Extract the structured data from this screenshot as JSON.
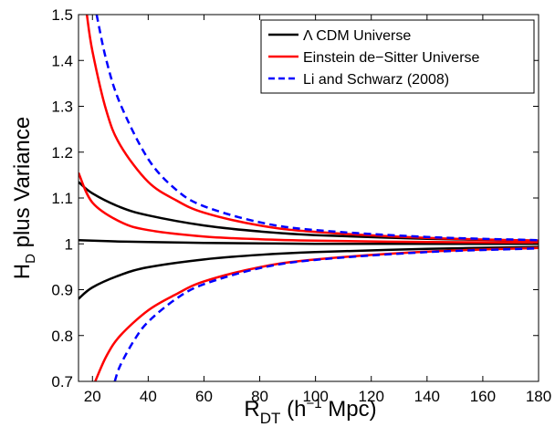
{
  "chart_data": {
    "type": "line",
    "xlabel": {
      "main": "R",
      "sub": "DT",
      "paren_open": " (h",
      "sup": "−1",
      "paren_close": " Mpc)"
    },
    "ylabel": {
      "main": "H",
      "sub": "D",
      "rest": " plus Variance"
    },
    "xlim": [
      15,
      180
    ],
    "ylim": [
      0.7,
      1.5
    ],
    "xticks": [
      "20",
      "40",
      "60",
      "80",
      "100",
      "120",
      "140",
      "160",
      "180"
    ],
    "yticks": [
      "0.7",
      "0.8",
      "0.9",
      "1",
      "1.1",
      "1.2",
      "1.3",
      "1.4",
      "1.5"
    ],
    "grid": false,
    "legend_position": "top-right",
    "legend": [
      {
        "label": "Λ CDM Universe",
        "color": "#000000",
        "style": "solid"
      },
      {
        "label": "Einstein de−Sitter Universe",
        "color": "#ff0000",
        "style": "solid"
      },
      {
        "label": "Li and Schwarz (2008)",
        "color": "#0000ff",
        "style": "dashed"
      }
    ],
    "series": [
      {
        "group": "Λ CDM Universe",
        "color": "#000000",
        "style": "solid",
        "x": [
          15,
          20,
          30,
          40,
          60,
          80,
          100,
          140,
          180
        ],
        "y": [
          1.135,
          1.11,
          1.08,
          1.062,
          1.04,
          1.027,
          1.019,
          1.011,
          1.007
        ]
      },
      {
        "group": "Λ CDM Universe",
        "color": "#000000",
        "style": "solid",
        "x": [
          15,
          20,
          30,
          40,
          60,
          80,
          100,
          140,
          180
        ],
        "y": [
          1.008,
          1.007,
          1.005,
          1.004,
          1.002,
          1.001,
          1.0,
          1.0,
          1.0
        ]
      },
      {
        "group": "Λ CDM Universe",
        "color": "#000000",
        "style": "solid",
        "x": [
          15,
          20,
          30,
          40,
          60,
          80,
          100,
          140,
          180
        ],
        "y": [
          0.88,
          0.905,
          0.932,
          0.949,
          0.966,
          0.976,
          0.982,
          0.989,
          0.993
        ]
      },
      {
        "group": "Einstein de−Sitter Universe",
        "color": "#ff0000",
        "style": "solid",
        "x": [
          15,
          20,
          30,
          40,
          60,
          80,
          100,
          140,
          180
        ],
        "y": [
          1.155,
          1.09,
          1.048,
          1.03,
          1.016,
          1.01,
          1.007,
          1.004,
          1.003
        ]
      },
      {
        "group": "Einstein de−Sitter Universe",
        "color": "#ff0000",
        "style": "solid",
        "x": [
          18,
          20,
          25,
          30,
          40,
          50,
          60,
          80,
          100,
          140,
          180
        ],
        "y": [
          1.5,
          1.42,
          1.29,
          1.215,
          1.135,
          1.095,
          1.068,
          1.04,
          1.026,
          1.013,
          1.007
        ]
      },
      {
        "group": "Einstein de−Sitter Universe",
        "color": "#ff0000",
        "style": "solid",
        "x": [
          21,
          25,
          30,
          40,
          50,
          60,
          80,
          100,
          140,
          180
        ],
        "y": [
          0.7,
          0.755,
          0.8,
          0.855,
          0.89,
          0.918,
          0.949,
          0.966,
          0.983,
          0.991
        ]
      },
      {
        "group": "Li and Schwarz (2008)",
        "color": "#0000ff",
        "style": "dashed",
        "x": [
          21.5,
          25,
          30,
          40,
          50,
          60,
          80,
          100,
          140,
          180
        ],
        "y": [
          1.5,
          1.4,
          1.305,
          1.185,
          1.118,
          1.082,
          1.047,
          1.03,
          1.015,
          1.008
        ]
      },
      {
        "group": "Li and Schwarz (2008)",
        "color": "#0000ff",
        "style": "dashed",
        "x": [
          28,
          30,
          35,
          40,
          50,
          60,
          80,
          100,
          140,
          180
        ],
        "y": [
          0.7,
          0.735,
          0.79,
          0.83,
          0.88,
          0.912,
          0.947,
          0.965,
          0.982,
          0.99
        ]
      }
    ]
  }
}
